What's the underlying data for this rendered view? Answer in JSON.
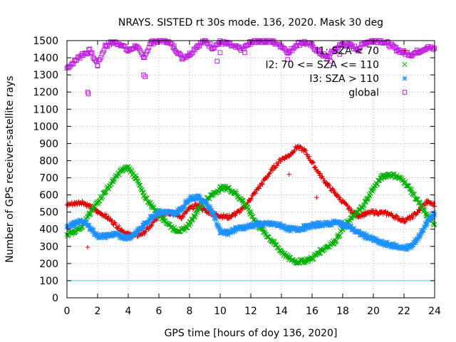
{
  "chart_data": {
    "type": "scatter",
    "title": "NRAYS. SISTED rt 30s mode. 136, 2020. Mask 30 deg",
    "xlabel": "GPS time [hours of doy 136, 2020]",
    "ylabel": "Number of GPS receiver-satellite rays",
    "xlim": [
      0,
      24
    ],
    "ylim": [
      0,
      1500
    ],
    "xticks": [
      0,
      2,
      4,
      6,
      8,
      10,
      12,
      14,
      16,
      18,
      20,
      22,
      24
    ],
    "yticks": [
      0,
      100,
      200,
      300,
      400,
      500,
      600,
      700,
      800,
      900,
      1000,
      1100,
      1200,
      1300,
      1400,
      1500
    ],
    "grid": true,
    "legend_position": "top-right",
    "reference_line": {
      "y": 100,
      "color": "#40d0e0"
    },
    "series": [
      {
        "name": "I1: SZA < 70",
        "marker": "+",
        "color": "#e00000",
        "x": [
          0,
          0.5,
          1,
          1.5,
          2,
          2.5,
          3,
          3.5,
          4,
          4.5,
          5,
          5.5,
          6,
          6.5,
          7,
          7.5,
          8,
          8.5,
          9,
          9.5,
          10,
          10.5,
          11,
          11.5,
          12,
          12.5,
          13,
          13.5,
          14,
          14.5,
          15,
          15.5,
          16,
          16.5,
          17,
          17.5,
          18,
          18.5,
          19,
          19.5,
          20,
          20.5,
          21,
          21.5,
          22,
          22.5,
          23,
          23.5,
          24
        ],
        "values": [
          545,
          550,
          560,
          530,
          500,
          480,
          440,
          400,
          370,
          360,
          380,
          420,
          480,
          500,
          490,
          470,
          520,
          540,
          510,
          490,
          480,
          470,
          490,
          520,
          580,
          640,
          700,
          760,
          810,
          830,
          880,
          860,
          790,
          720,
          660,
          610,
          560,
          510,
          480,
          490,
          500,
          495,
          490,
          470,
          450,
          470,
          510,
          560,
          540
        ],
        "outliers": [
          [
            1.35,
            295
          ],
          [
            14.5,
            720
          ],
          [
            16.3,
            585
          ],
          [
            4.5,
            380
          ]
        ]
      },
      {
        "name": "I2: 70 <= SZA <= 110",
        "marker": "x",
        "color": "#00b000",
        "x": [
          0,
          0.5,
          1,
          1.5,
          2,
          2.5,
          3,
          3.5,
          4,
          4.5,
          5,
          5.5,
          6,
          6.5,
          7,
          7.5,
          8,
          8.5,
          9,
          9.5,
          10,
          10.5,
          11,
          11.5,
          12,
          12.5,
          13,
          13.5,
          14,
          14.5,
          15,
          15.5,
          16,
          16.5,
          17,
          17.5,
          18,
          18.5,
          19,
          19.5,
          20,
          20.5,
          21,
          21.5,
          22,
          22.5,
          23,
          23.5,
          24
        ],
        "values": [
          370,
          390,
          420,
          490,
          560,
          620,
          680,
          740,
          760,
          700,
          600,
          540,
          490,
          440,
          400,
          390,
          430,
          510,
          570,
          600,
          640,
          640,
          610,
          560,
          490,
          420,
          370,
          320,
          270,
          230,
          210,
          215,
          230,
          270,
          300,
          330,
          400,
          460,
          500,
          560,
          640,
          700,
          720,
          710,
          680,
          620,
          550,
          480,
          430
        ]
      },
      {
        "name": "I3: SZA > 110",
        "marker": "*",
        "color": "#1e90ff",
        "x": [
          0,
          0.5,
          1,
          1.5,
          2,
          2.5,
          3,
          3.5,
          4,
          4.5,
          5,
          5.5,
          6,
          6.5,
          7,
          7.5,
          8,
          8.5,
          9,
          9.5,
          10,
          10.5,
          11,
          11.5,
          12,
          12.5,
          13,
          13.5,
          14,
          14.5,
          15,
          15.5,
          16,
          16.5,
          17,
          17.5,
          18,
          18.5,
          19,
          19.5,
          20,
          20.5,
          21,
          21.5,
          22,
          22.5,
          23,
          23.5,
          24
        ],
        "values": [
          420,
          430,
          450,
          410,
          360,
          360,
          370,
          360,
          350,
          380,
          420,
          470,
          500,
          500,
          490,
          520,
          580,
          590,
          560,
          500,
          390,
          380,
          400,
          410,
          420,
          430,
          430,
          430,
          420,
          400,
          400,
          410,
          420,
          430,
          430,
          440,
          430,
          410,
          380,
          360,
          340,
          320,
          310,
          300,
          290,
          300,
          360,
          440,
          490
        ]
      },
      {
        "name": "global",
        "marker": "square",
        "color": "#c020e0",
        "x": [
          0,
          0.5,
          1,
          1.5,
          2,
          2.5,
          3,
          3.5,
          4,
          4.5,
          5,
          5.5,
          6,
          6.5,
          7,
          7.5,
          8,
          8.5,
          9,
          9.5,
          10,
          10.5,
          11,
          11.5,
          12,
          12.5,
          13,
          13.5,
          14,
          14.5,
          15,
          15.5,
          16,
          16.5,
          17,
          17.5,
          18,
          18.5,
          19,
          19.5,
          20,
          20.5,
          21,
          21.5,
          22,
          22.5,
          23,
          23.5,
          24
        ],
        "values": [
          1340,
          1380,
          1420,
          1440,
          1360,
          1470,
          1490,
          1480,
          1440,
          1470,
          1400,
          1490,
          1500,
          1500,
          1460,
          1400,
          1420,
          1470,
          1500,
          1460,
          1490,
          1480,
          1460,
          1450,
          1490,
          1500,
          1500,
          1490,
          1470,
          1430,
          1480,
          1490,
          1470,
          1430,
          1400,
          1450,
          1480,
          1470,
          1450,
          1490,
          1500,
          1500,
          1480,
          1450,
          1430,
          1420,
          1440,
          1460,
          1450
        ],
        "outliers": [
          [
            1.35,
            1200
          ],
          [
            1.4,
            1190
          ],
          [
            5.0,
            1300
          ],
          [
            5.1,
            1290
          ],
          [
            9.8,
            1380
          ],
          [
            10.0,
            1430
          ],
          [
            11.6,
            1430
          ],
          [
            14.4,
            1390
          ],
          [
            17.2,
            1380
          ],
          [
            17.8,
            1420
          ]
        ]
      }
    ]
  }
}
